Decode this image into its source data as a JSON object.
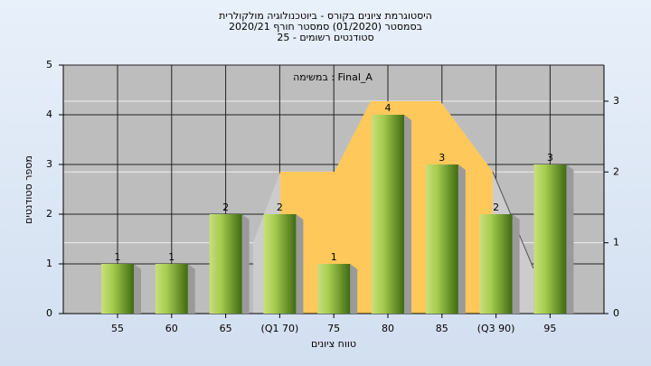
{
  "chart_data": {
    "type": "bar",
    "title": [
      "היסטוגרמת ציונים בקורס - ביוטכנולוגיה מולקולרית",
      "בסמסטר  (01/2020)  סמסטר חורף 2020/21",
      "סטודנטים רשומים - 25"
    ],
    "annotation": "במשימה : Final_A",
    "x_label": "טווח ציונים",
    "y_label": "מספר סטודנטים",
    "categories": [
      "55",
      "60",
      "65",
      "(Q1 70)",
      "75",
      "80",
      "85",
      "(Q3 90)",
      "95"
    ],
    "values": [
      1,
      1,
      2,
      2,
      1,
      4,
      3,
      2,
      3
    ],
    "color": "#8fbf3a",
    "ylim": [
      0,
      5
    ],
    "yticks": [
      0,
      1,
      2,
      3,
      4,
      5
    ],
    "y2lim": [
      0,
      3.51
    ],
    "y2ticks": [
      0,
      1,
      2,
      3
    ],
    "grid": true
  }
}
